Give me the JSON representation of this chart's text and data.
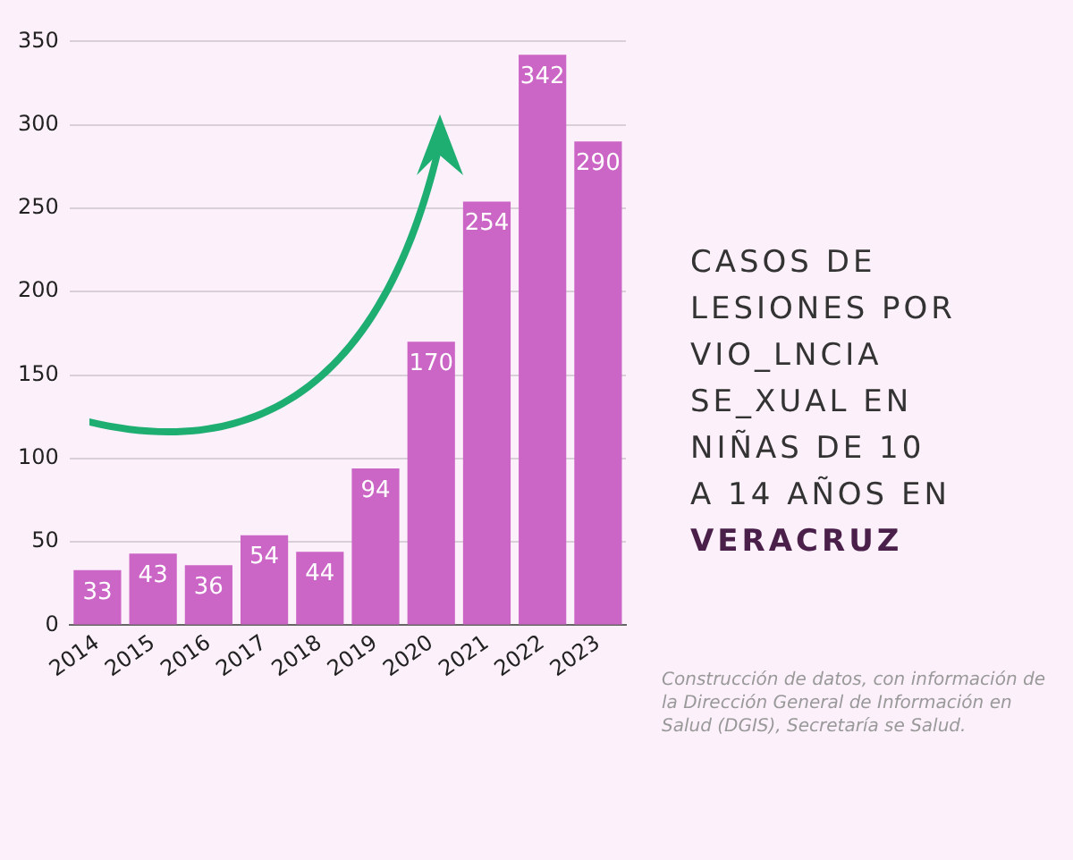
{
  "chart_data": {
    "type": "bar",
    "title": "CASOS DE LESIONES POR VIO_LNCIA SE_XUAL EN NIÑAS DE 10 A 14 AÑOS EN VERACRUZ",
    "categories": [
      "2014",
      "2015",
      "2016",
      "2017",
      "2018",
      "2019",
      "2020",
      "2021",
      "2022",
      "2023"
    ],
    "values": [
      33,
      43,
      36,
      54,
      44,
      94,
      170,
      254,
      342,
      290
    ],
    "color": "#cc66c6",
    "ylim": [
      0,
      350
    ],
    "yticks": [
      0,
      50,
      100,
      150,
      200,
      250,
      300,
      350
    ],
    "grid": "y",
    "data_labels": true,
    "annotations": [
      "Construcción de datos, con información de la Dirección General de Información en Salud (DGIS), Secretaría se Salud."
    ]
  }
}
